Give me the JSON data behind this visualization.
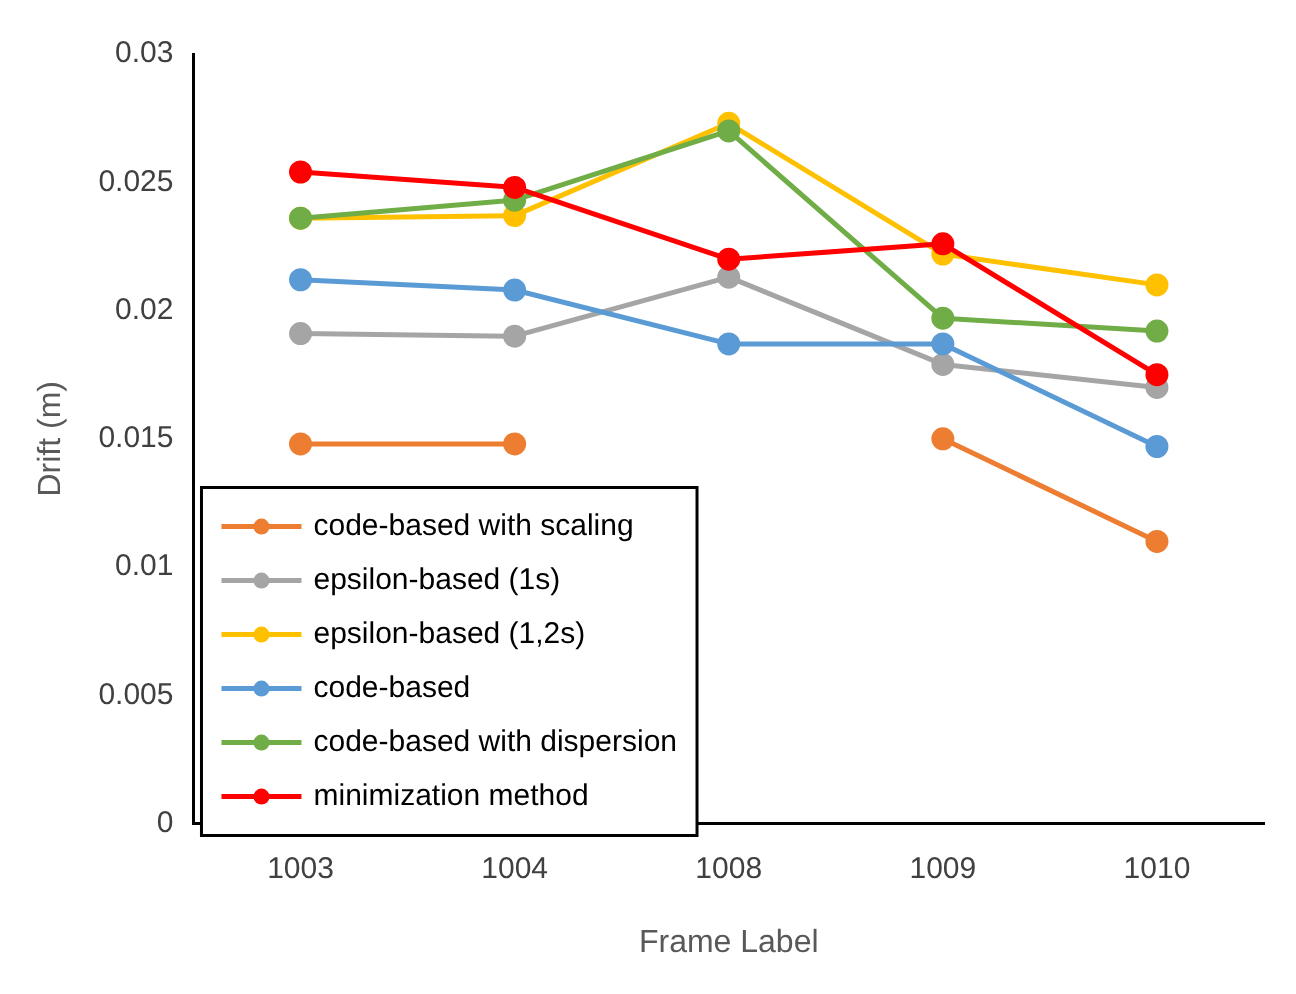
{
  "chart_data": {
    "type": "line",
    "xlabel": "Frame Label",
    "ylabel": "Drift (m)",
    "categories": [
      "1003",
      "1004",
      "1008",
      "1009",
      "1010"
    ],
    "series": [
      {
        "name": "code-based with scaling",
        "color": "#ed7d31",
        "values": [
          0.0148,
          0.0148,
          null,
          0.015,
          0.011
        ]
      },
      {
        "name": "epsilon-based (1s)",
        "color": "#a5a5a5",
        "values": [
          0.0191,
          0.019,
          0.0213,
          0.0179,
          0.017
        ]
      },
      {
        "name": "epsilon-based (1,2s)",
        "color": "#ffc000",
        "values": [
          0.0236,
          0.0237,
          0.0273,
          0.0222,
          0.021
        ]
      },
      {
        "name": "code-based",
        "color": "#5b9bd5",
        "values": [
          0.0212,
          0.0208,
          0.0187,
          0.0187,
          0.0147
        ]
      },
      {
        "name": "code-based with dispersion",
        "color": "#70ad47",
        "values": [
          0.0236,
          0.0243,
          0.027,
          0.0197,
          0.0192
        ]
      },
      {
        "name": "minimization method",
        "color": "#ff0000",
        "values": [
          0.0254,
          0.0248,
          0.022,
          0.0226,
          0.0175
        ]
      }
    ],
    "ylim": [
      0,
      0.03
    ],
    "yticks": [
      0,
      0.005,
      0.01,
      0.015,
      0.02,
      0.025,
      0.03
    ],
    "grid": false,
    "legend": "bottom left",
    "marker": "circle",
    "line_style": "solid"
  }
}
